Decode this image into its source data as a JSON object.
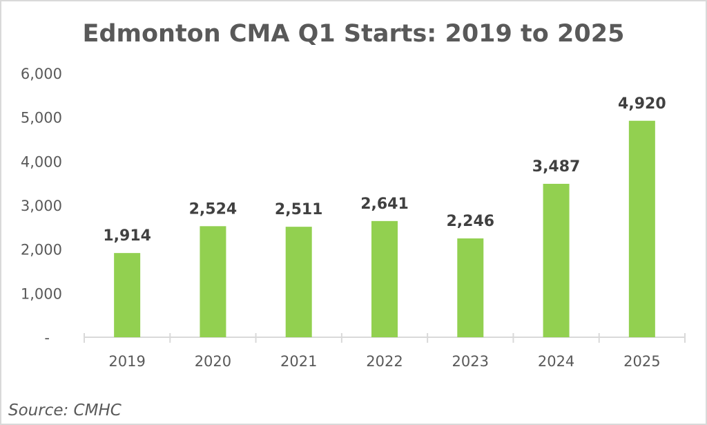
{
  "chart_data": {
    "type": "bar",
    "title": "Edmonton CMA Q1 Starts: 2019 to 2025",
    "xlabel": "",
    "ylabel": "",
    "categories": [
      "2019",
      "2020",
      "2021",
      "2022",
      "2023",
      "2024",
      "2025"
    ],
    "values": [
      1914,
      2524,
      2511,
      2641,
      2246,
      3487,
      4920
    ],
    "data_labels": [
      "1,914",
      "2,524",
      "2,511",
      "2,641",
      "2,246",
      "3,487",
      "4,920"
    ],
    "ylim": [
      0,
      6000
    ],
    "yticks": [
      0,
      1000,
      2000,
      3000,
      4000,
      5000,
      6000
    ],
    "ytick_labels": [
      "-",
      "1,000",
      "2,000",
      "3,000",
      "4,000",
      "5,000",
      "6,000"
    ],
    "grid": false,
    "legend": "none",
    "bar_color": "#92d050",
    "source": "Source: CMHC"
  }
}
